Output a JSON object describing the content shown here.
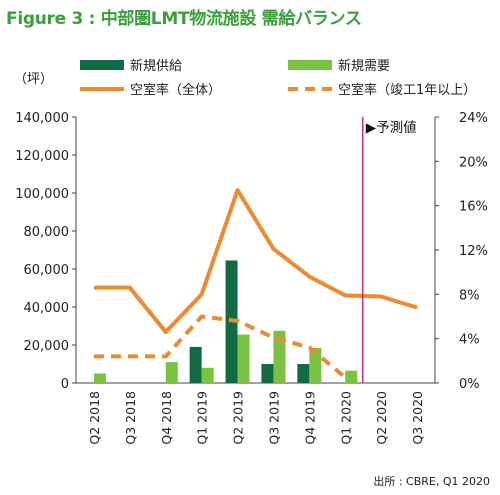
{
  "title": "Figure 3 : 中部圏LMT物流施設 需給バランス",
  "source": "出所 : CBRE, Q1 2020",
  "colors": {
    "title": "#3aa13a",
    "supply": "#106b45",
    "demand": "#7cc242",
    "vacancy": "#ee8a2f",
    "forecast_line": "#d6287a"
  },
  "chart_data": {
    "type": "bar",
    "categories": [
      "Q2 2018",
      "Q3 2018",
      "Q4 2018",
      "Q1 2019",
      "Q2 2019",
      "Q3 2019",
      "Q4 2019",
      "Q1 2020",
      "Q2 2020",
      "Q3 2020"
    ],
    "left_axis": {
      "unit": "（坪）",
      "ylim": [
        0,
        140000
      ],
      "ticks": [
        "0",
        "20,000",
        "40,000",
        "60,000",
        "80,000",
        "100,000",
        "120,000",
        "140,000"
      ]
    },
    "right_axis": {
      "ylim": [
        0,
        24
      ],
      "ticks": [
        "0%",
        "4%",
        "8%",
        "12%",
        "16%",
        "20%",
        "24%"
      ]
    },
    "series": [
      {
        "name": "新規供給",
        "type": "bar",
        "axis": "left",
        "values": [
          0,
          0,
          0,
          19000,
          64500,
          10000,
          10000,
          0,
          null,
          null
        ]
      },
      {
        "name": "新規需要",
        "type": "bar",
        "axis": "left",
        "values": [
          5000,
          0,
          11000,
          8000,
          25500,
          27500,
          18500,
          6500,
          null,
          null
        ]
      },
      {
        "name": "空室率（全体）",
        "type": "line",
        "axis": "right",
        "values": [
          8.6,
          8.6,
          4.6,
          8.0,
          17.4,
          12.1,
          9.6,
          7.9,
          7.8,
          6.8
        ]
      },
      {
        "name": "空室率（竣工1年以上）",
        "type": "line-dashed",
        "axis": "right",
        "values": [
          2.4,
          2.4,
          2.4,
          6.0,
          5.6,
          4.1,
          3.2,
          0.5,
          null,
          null
        ]
      }
    ],
    "annotations": [
      {
        "text": "▶予測値",
        "x_after": "Q1 2020"
      }
    ],
    "grid": false,
    "legend": "top"
  }
}
